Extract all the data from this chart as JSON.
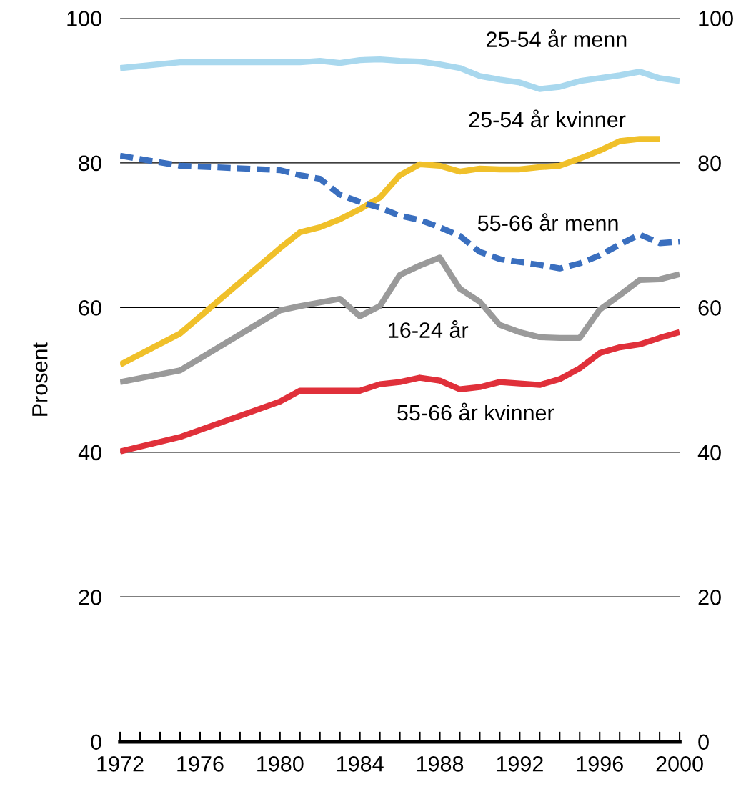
{
  "chart_data": {
    "type": "line",
    "ylabel": "Prosent",
    "x": [
      1972,
      1975,
      1980,
      1981,
      1982,
      1983,
      1984,
      1985,
      1986,
      1987,
      1988,
      1989,
      1990,
      1991,
      1992,
      1993,
      1994,
      1995,
      1996,
      1997,
      1998,
      1999,
      2000
    ],
    "series": [
      {
        "name": "25-54 år menn",
        "color": "#a9d8ee",
        "line_style": "solid",
        "values": [
          93.1,
          93.9,
          93.9,
          93.9,
          94.1,
          93.8,
          94.2,
          94.3,
          94.1,
          94.0,
          93.6,
          93.1,
          92.0,
          91.5,
          91.1,
          90.2,
          90.5,
          91.3,
          91.7,
          92.1,
          92.6,
          91.7,
          91.3
        ]
      },
      {
        "name": "25-54 år kvinner",
        "color": "#f0c02a",
        "line_style": "solid",
        "values": [
          52.1,
          56.4,
          68.2,
          70.4,
          71.1,
          72.2,
          73.6,
          75.2,
          78.3,
          79.8,
          79.6,
          78.8,
          79.2,
          79.1,
          79.1,
          79.4,
          79.6,
          80.6,
          81.7,
          83.0,
          83.3,
          83.3,
          null
        ]
      },
      {
        "name": "55-66 år menn",
        "color": "#3a6fbf",
        "line_style": "dashed",
        "values": [
          81.0,
          79.6,
          79.0,
          78.3,
          77.8,
          75.6,
          74.6,
          73.8,
          72.7,
          72.1,
          71.1,
          69.9,
          67.7,
          66.7,
          66.3,
          65.9,
          65.4,
          66.1,
          67.2,
          68.7,
          70.1,
          68.9,
          69.1
        ]
      },
      {
        "name": "16-24 år",
        "color": "#9a9a9a",
        "line_style": "solid",
        "values": [
          49.7,
          51.3,
          59.6,
          60.2,
          60.7,
          61.2,
          58.8,
          60.2,
          64.5,
          65.8,
          66.9,
          62.6,
          60.8,
          57.6,
          56.6,
          55.9,
          55.8,
          55.8,
          59.7,
          61.7,
          63.8,
          63.9,
          64.6
        ]
      },
      {
        "name": "55-66 år kvinner",
        "color": "#e0303a",
        "line_style": "solid",
        "values": [
          40.1,
          42.1,
          47.0,
          48.5,
          48.5,
          48.5,
          48.5,
          49.4,
          49.7,
          50.3,
          49.9,
          48.7,
          49.0,
          49.7,
          49.5,
          49.3,
          50.1,
          51.6,
          53.7,
          54.5,
          54.9,
          55.8,
          56.6
        ]
      }
    ],
    "xlim": [
      1972,
      2000
    ],
    "xticks": [
      1972,
      {
        "value": 1973,
        "label": null
      },
      {
        "value": 1974,
        "label": null
      },
      {
        "value": 1975,
        "label": null
      },
      1976,
      {
        "value": 1977,
        "label": null
      },
      {
        "value": 1978,
        "label": null
      },
      {
        "value": 1979,
        "label": null
      },
      1980,
      {
        "value": 1981,
        "label": null
      },
      {
        "value": 1982,
        "label": null
      },
      {
        "value": 1983,
        "label": null
      },
      1984,
      {
        "value": 1985,
        "label": null
      },
      {
        "value": 1986,
        "label": null
      },
      {
        "value": 1987,
        "label": null
      },
      1988,
      {
        "value": 1989,
        "label": null
      },
      {
        "value": 1990,
        "label": null
      },
      {
        "value": 1991,
        "label": null
      },
      1992,
      {
        "value": 1993,
        "label": null
      },
      {
        "value": 1994,
        "label": null
      },
      {
        "value": 1995,
        "label": null
      },
      1996,
      {
        "value": 1997,
        "label": null
      },
      {
        "value": 1998,
        "label": null
      },
      {
        "value": 1999,
        "label": null
      },
      2000
    ],
    "ylim": [
      0,
      100
    ],
    "yticks": [
      0,
      20,
      40,
      60,
      80,
      100
    ],
    "y2lim": [
      0,
      100
    ],
    "y2ticks": [
      0,
      20,
      40,
      60,
      80,
      100
    ],
    "grid": "y",
    "marker": "none"
  }
}
